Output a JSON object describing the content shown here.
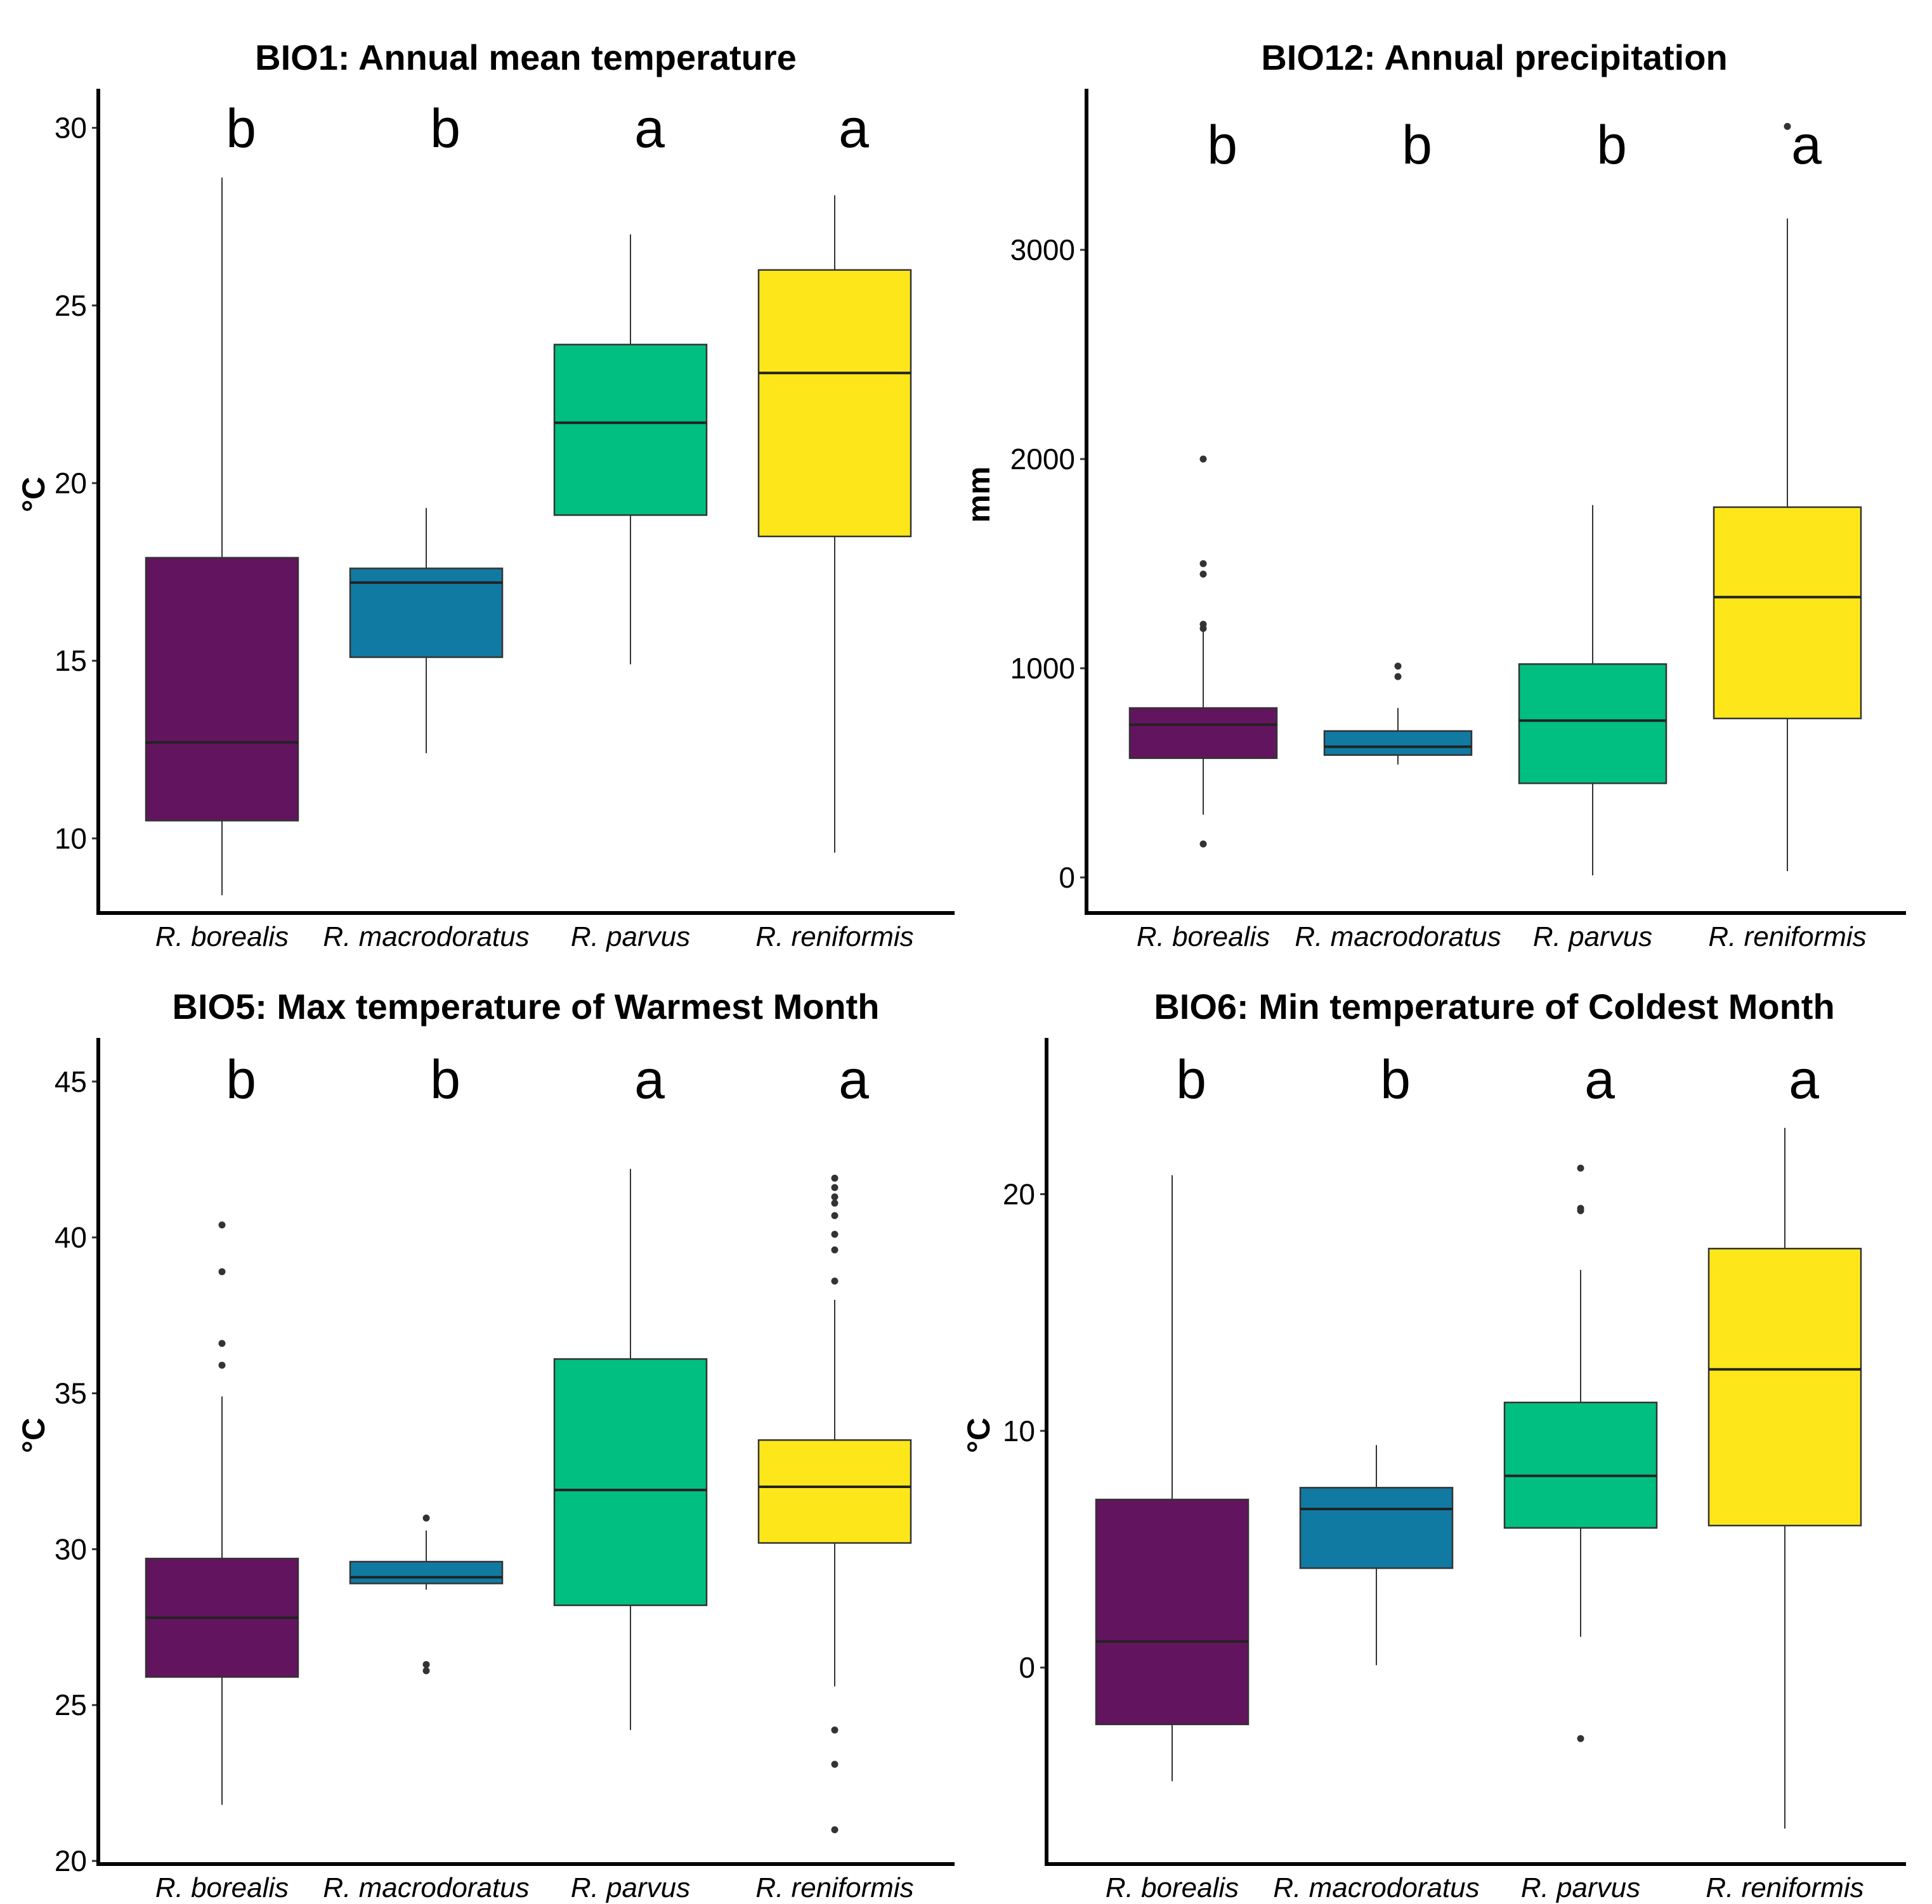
{
  "chart_data": [
    {
      "type": "box",
      "title": "BIO1: Annual mean temperature",
      "ylabel": "°C",
      "ylim": [
        7.9,
        31.1
      ],
      "yticks": [
        10,
        15,
        20,
        25,
        30
      ],
      "categories": [
        "R. borealis",
        "R. macrodoratus",
        "R. parvus",
        "R. reniformis"
      ],
      "significance": [
        "b",
        "b",
        "a",
        "a"
      ],
      "boxes": [
        {
          "min": 8.4,
          "q1": 10.5,
          "median": 12.7,
          "q3": 17.9,
          "max": 28.6,
          "outliers": []
        },
        {
          "min": 12.4,
          "q1": 15.1,
          "median": 17.2,
          "q3": 17.6,
          "max": 19.3,
          "outliers": []
        },
        {
          "min": 14.9,
          "q1": 19.1,
          "median": 21.7,
          "q3": 23.9,
          "max": 27.0,
          "outliers": []
        },
        {
          "min": 9.6,
          "q1": 18.5,
          "median": 23.1,
          "q3": 26.0,
          "max": 28.1,
          "outliers": []
        }
      ],
      "colors": [
        "#63145f",
        "#117aa2",
        "#00bf80",
        "#fde71a"
      ]
    },
    {
      "type": "box",
      "title": "BIO12: Annual precipitation",
      "ylabel": "mm",
      "ylim": [
        -170,
        3770
      ],
      "yticks": [
        0,
        1000,
        2000,
        3000
      ],
      "categories": [
        "R. borealis",
        "R. macrodoratus",
        "R. parvus",
        "R. reniformis"
      ],
      "significance": [
        "b",
        "b",
        "b",
        "a"
      ],
      "boxes": [
        {
          "min": 300,
          "q1": 570,
          "median": 730,
          "q3": 810,
          "max": 1180,
          "outliers": [
            160,
            1190,
            1210,
            1450,
            1500,
            2000
          ]
        },
        {
          "min": 540,
          "q1": 585,
          "median": 625,
          "q3": 700,
          "max": 810,
          "outliers": [
            960,
            1010
          ]
        },
        {
          "min": 10,
          "q1": 450,
          "median": 750,
          "q3": 1020,
          "max": 1780,
          "outliers": []
        },
        {
          "min": 30,
          "q1": 760,
          "median": 1340,
          "q3": 1770,
          "max": 3150,
          "outliers": [
            3590
          ]
        }
      ],
      "colors": [
        "#63145f",
        "#117aa2",
        "#00bf80",
        "#fde71a"
      ]
    },
    {
      "type": "box",
      "title": "BIO5: Max temperature of Warmest Month",
      "ylabel": "°C",
      "ylim": [
        19.9,
        46.4
      ],
      "yticks": [
        20,
        25,
        30,
        35,
        40,
        45
      ],
      "categories": [
        "R. borealis",
        "R. macrodoratus",
        "R. parvus",
        "R. reniformis"
      ],
      "significance": [
        "b",
        "b",
        "a",
        "a"
      ],
      "boxes": [
        {
          "min": 21.8,
          "q1": 25.9,
          "median": 27.8,
          "q3": 29.7,
          "max": 34.9,
          "outliers": [
            35.9,
            36.6,
            38.9,
            40.4
          ]
        },
        {
          "min": 28.7,
          "q1": 28.9,
          "median": 29.1,
          "q3": 29.6,
          "max": 30.6,
          "outliers": [
            26.1,
            26.3,
            31.0
          ]
        },
        {
          "min": 24.2,
          "q1": 28.2,
          "median": 31.9,
          "q3": 36.1,
          "max": 42.2,
          "outliers": []
        },
        {
          "min": 25.6,
          "q1": 30.2,
          "median": 32.0,
          "q3": 33.5,
          "max": 38.0,
          "outliers": [
            21.0,
            23.1,
            24.2,
            38.6,
            39.6,
            40.1,
            40.7,
            41.1,
            41.3,
            41.6,
            41.9
          ]
        }
      ],
      "colors": [
        "#63145f",
        "#117aa2",
        "#00bf80",
        "#fde71a"
      ]
    },
    {
      "type": "box",
      "title": "BIO6: Min temperature of Coldest Month",
      "ylabel": "°C",
      "ylim": [
        -8.3,
        26.6
      ],
      "yticks": [
        0,
        10,
        20
      ],
      "categories": [
        "R. borealis",
        "R. macrodoratus",
        "R. parvus",
        "R. reniformis"
      ],
      "significance": [
        "b",
        "b",
        "a",
        "a"
      ],
      "boxes": [
        {
          "min": -4.8,
          "q1": -2.4,
          "median": 1.1,
          "q3": 7.1,
          "max": 20.8,
          "outliers": []
        },
        {
          "min": 0.1,
          "q1": 4.2,
          "median": 6.7,
          "q3": 7.6,
          "max": 9.4,
          "outliers": []
        },
        {
          "min": 1.3,
          "q1": 5.9,
          "median": 8.1,
          "q3": 11.2,
          "max": 16.8,
          "outliers": [
            -3.0,
            19.3,
            19.4,
            21.1
          ]
        },
        {
          "min": -6.8,
          "q1": 6.0,
          "median": 12.6,
          "q3": 17.7,
          "max": 22.8,
          "outliers": []
        }
      ],
      "colors": [
        "#63145f",
        "#117aa2",
        "#00bf80",
        "#fde71a"
      ]
    }
  ]
}
